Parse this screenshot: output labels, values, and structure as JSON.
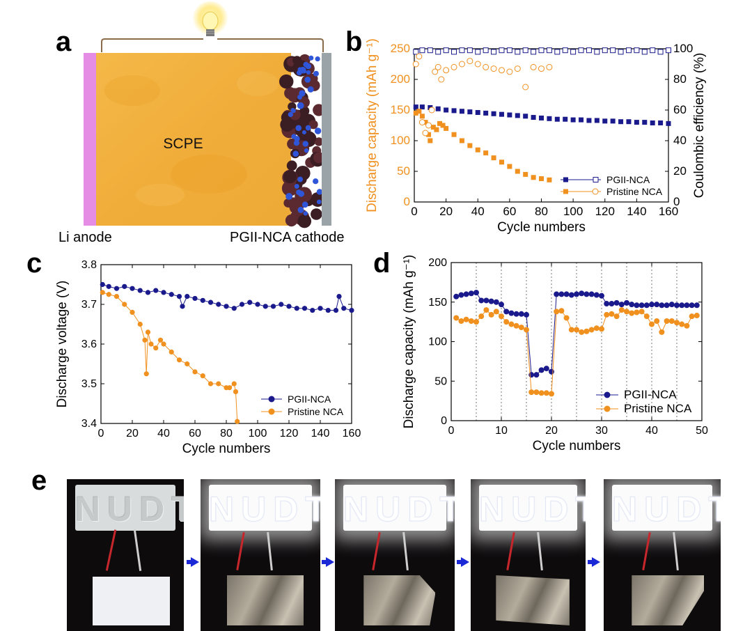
{
  "panels": {
    "a": "a",
    "b": "b",
    "c": "c",
    "d": "d",
    "e": "e"
  },
  "panel_a": {
    "electrolyte_label": "SCPE",
    "anode_label": "Li anode",
    "cathode_label": "PGII-NCA cathode"
  },
  "panel_e": {
    "sign_text": "NUDT"
  },
  "colors": {
    "pgii": "#1a1a8c",
    "pristine": "#f0901e"
  },
  "chart_data": [
    {
      "id": "b",
      "type": "scatter",
      "xlabel": "Cycle numbers",
      "ylabel": "Discharge capacity (mAh g⁻¹)",
      "y2label": "Coulombic efficiency (%)",
      "xlim": [
        0,
        160
      ],
      "ylim": [
        0,
        250
      ],
      "y2lim": [
        0,
        100
      ],
      "xticks": [
        0,
        20,
        40,
        60,
        80,
        100,
        120,
        140,
        160
      ],
      "yticks": [
        0,
        50,
        100,
        150,
        200,
        250
      ],
      "y2ticks": [
        0,
        20,
        40,
        60,
        80,
        100
      ],
      "legend": [
        "PGII-NCA",
        "Pristine NCA"
      ],
      "legend_position": "bottom-right",
      "series": [
        {
          "name": "PGII-NCA",
          "axis": "left",
          "marker": "filled-square",
          "x": [
            1,
            5,
            10,
            15,
            20,
            25,
            30,
            35,
            40,
            45,
            50,
            55,
            60,
            65,
            70,
            75,
            80,
            85,
            90,
            95,
            100,
            105,
            110,
            115,
            120,
            125,
            130,
            135,
            140,
            145,
            150,
            155,
            160
          ],
          "y": [
            155,
            155,
            154,
            152,
            150,
            149,
            148,
            147,
            146,
            145,
            144,
            143,
            142,
            141,
            140,
            138,
            137,
            136,
            135,
            135,
            134,
            134,
            133,
            133,
            132,
            132,
            131,
            131,
            130,
            130,
            129,
            129,
            128
          ]
        },
        {
          "name": "PGII-NCA",
          "axis": "right",
          "marker": "open-square",
          "x": [
            1,
            5,
            10,
            15,
            20,
            25,
            30,
            35,
            40,
            45,
            50,
            55,
            60,
            65,
            70,
            75,
            80,
            85,
            90,
            95,
            100,
            105,
            110,
            115,
            120,
            125,
            130,
            135,
            140,
            145,
            150,
            155,
            160
          ],
          "y": [
            98,
            99,
            99,
            98,
            99,
            98,
            99,
            99,
            98,
            99,
            98,
            99,
            99,
            98,
            99,
            98,
            99,
            99,
            98,
            99,
            98,
            99,
            99,
            98,
            99,
            99,
            98,
            99,
            99,
            98,
            99,
            98,
            99
          ]
        },
        {
          "name": "Pristine NCA",
          "axis": "left",
          "marker": "filled-square",
          "x": [
            1,
            3,
            5,
            7,
            9,
            10,
            12,
            14,
            16,
            18,
            20,
            25,
            30,
            35,
            40,
            45,
            50,
            55,
            60,
            65,
            70,
            75,
            80,
            85
          ],
          "y": [
            145,
            148,
            140,
            130,
            110,
            100,
            122,
            118,
            128,
            125,
            120,
            110,
            100,
            92,
            85,
            80,
            72,
            65,
            58,
            50,
            45,
            40,
            38,
            36
          ]
        },
        {
          "name": "Pristine NCA",
          "axis": "right",
          "marker": "open-circle",
          "x": [
            1,
            3,
            5,
            7,
            9,
            11,
            13,
            15,
            17,
            20,
            25,
            30,
            35,
            40,
            45,
            50,
            55,
            60,
            65,
            70,
            75,
            80,
            85
          ],
          "y": [
            90,
            95,
            52,
            45,
            50,
            60,
            85,
            88,
            80,
            86,
            88,
            90,
            92,
            90,
            88,
            87,
            86,
            85,
            87,
            75,
            88,
            87,
            88
          ]
        }
      ]
    },
    {
      "id": "c",
      "type": "line",
      "xlabel": "Cycle numbers",
      "ylabel": "Discharge voltage (V)",
      "xlim": [
        0,
        160
      ],
      "ylim": [
        3.4,
        3.8
      ],
      "xticks": [
        0,
        20,
        40,
        60,
        80,
        100,
        120,
        140,
        160
      ],
      "yticks": [
        3.4,
        3.5,
        3.6,
        3.7,
        3.8
      ],
      "legend": [
        "PGII-NCA",
        "Pristine NCA"
      ],
      "legend_position": "bottom-right",
      "series": [
        {
          "name": "PGII-NCA",
          "marker": "circle",
          "x": [
            1,
            5,
            10,
            15,
            20,
            25,
            30,
            35,
            40,
            45,
            50,
            52,
            55,
            60,
            65,
            70,
            75,
            80,
            85,
            90,
            95,
            100,
            105,
            110,
            115,
            120,
            125,
            130,
            135,
            140,
            145,
            150,
            152,
            155,
            160
          ],
          "y": [
            3.75,
            3.745,
            3.74,
            3.745,
            3.74,
            3.735,
            3.73,
            3.735,
            3.73,
            3.725,
            3.72,
            3.695,
            3.72,
            3.715,
            3.71,
            3.705,
            3.7,
            3.695,
            3.69,
            3.7,
            3.705,
            3.7,
            3.695,
            3.695,
            3.7,
            3.695,
            3.69,
            3.69,
            3.685,
            3.69,
            3.685,
            3.685,
            3.72,
            3.69,
            3.685
          ]
        },
        {
          "name": "Pristine NCA",
          "marker": "circle",
          "x": [
            1,
            5,
            10,
            15,
            20,
            25,
            28,
            29,
            30,
            32,
            35,
            38,
            40,
            45,
            50,
            55,
            60,
            65,
            70,
            75,
            80,
            82,
            85,
            86,
            87
          ],
          "y": [
            3.73,
            3.725,
            3.72,
            3.7,
            3.68,
            3.65,
            3.61,
            3.525,
            3.63,
            3.6,
            3.59,
            3.61,
            3.6,
            3.58,
            3.56,
            3.55,
            3.53,
            3.52,
            3.5,
            3.5,
            3.49,
            3.49,
            3.5,
            3.48,
            3.405
          ]
        }
      ]
    },
    {
      "id": "d",
      "type": "line",
      "xlabel": "Cycle numbers",
      "ylabel": "Discharge capacity (mAh g⁻¹)",
      "xlim": [
        0,
        50
      ],
      "ylim": [
        0,
        200
      ],
      "xticks": [
        0,
        10,
        20,
        30,
        40,
        50
      ],
      "yticks": [
        0,
        50,
        100,
        150,
        200
      ],
      "vlines": [
        5,
        10,
        15,
        20,
        25,
        30,
        35,
        40,
        45
      ],
      "legend": [
        "PGII-NCA",
        "Pristine NCA"
      ],
      "legend_position": "bottom-right",
      "series": [
        {
          "name": "PGII-NCA",
          "marker": "circle",
          "x": [
            1,
            2,
            3,
            4,
            5,
            6,
            7,
            8,
            9,
            10,
            11,
            12,
            13,
            14,
            15,
            16,
            17,
            18,
            19,
            20,
            21,
            22,
            23,
            24,
            25,
            26,
            27,
            28,
            29,
            30,
            31,
            32,
            33,
            34,
            35,
            36,
            37,
            38,
            39,
            40,
            41,
            42,
            43,
            44,
            45,
            46,
            47,
            48,
            49
          ],
          "y": [
            157,
            159,
            160,
            161,
            162,
            152,
            152,
            151,
            150,
            147,
            138,
            136,
            135,
            135,
            134,
            58,
            58,
            64,
            66,
            62,
            160,
            160,
            160,
            159,
            160,
            161,
            160,
            160,
            159,
            158,
            148,
            148,
            149,
            147,
            149,
            147,
            146,
            146,
            146,
            147,
            147,
            146,
            146,
            147,
            146,
            146,
            146,
            146,
            146
          ]
        },
        {
          "name": "Pristine NCA",
          "marker": "circle",
          "x": [
            1,
            2,
            3,
            4,
            5,
            6,
            7,
            8,
            9,
            10,
            11,
            12,
            13,
            14,
            15,
            16,
            17,
            18,
            19,
            20,
            21,
            22,
            23,
            24,
            25,
            26,
            27,
            28,
            29,
            30,
            31,
            32,
            33,
            34,
            35,
            36,
            37,
            38,
            39,
            40,
            41,
            42,
            43,
            44,
            45,
            46,
            47,
            48,
            49
          ],
          "y": [
            130,
            126,
            128,
            126,
            125,
            132,
            140,
            134,
            138,
            132,
            125,
            122,
            120,
            118,
            115,
            36,
            36,
            35,
            35,
            34,
            138,
            139,
            130,
            115,
            115,
            112,
            113,
            115,
            117,
            116,
            134,
            135,
            132,
            140,
            138,
            136,
            137,
            138,
            132,
            122,
            126,
            112,
            126,
            126,
            124,
            122,
            120,
            132,
            133
          ]
        }
      ]
    }
  ]
}
